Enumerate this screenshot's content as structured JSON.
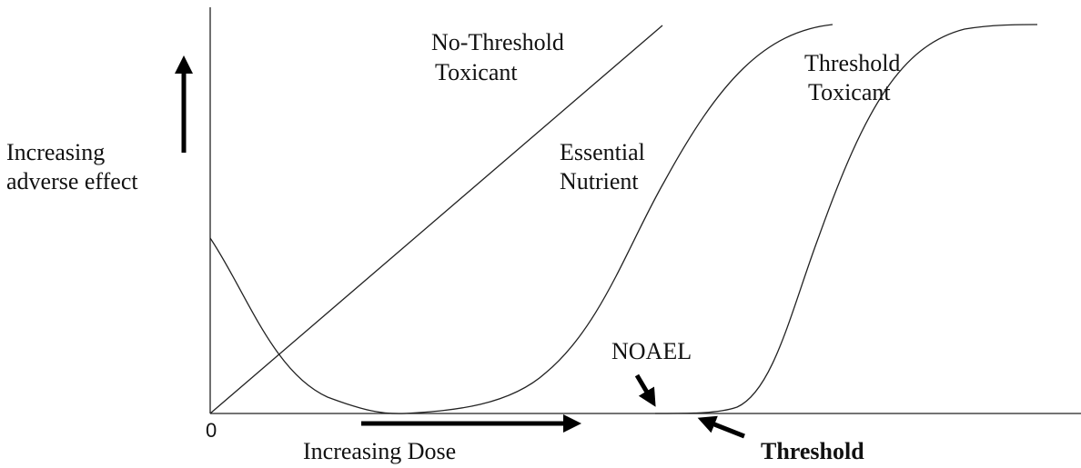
{
  "curves": {
    "no_threshold": {
      "label": [
        "No-Threshold",
        "Toxicant"
      ]
    },
    "threshold": {
      "label": [
        "Threshold",
        "Toxicant"
      ]
    },
    "nutrient": {
      "label": [
        "Essential",
        "Nutrient"
      ]
    }
  },
  "y_axis": {
    "label": [
      "Increasing",
      "adverse effect"
    ]
  },
  "x_axis": {
    "origin": "0",
    "label": "Increasing Dose"
  },
  "annotations": {
    "noael": "NOAEL",
    "threshold": "Threshold"
  }
}
